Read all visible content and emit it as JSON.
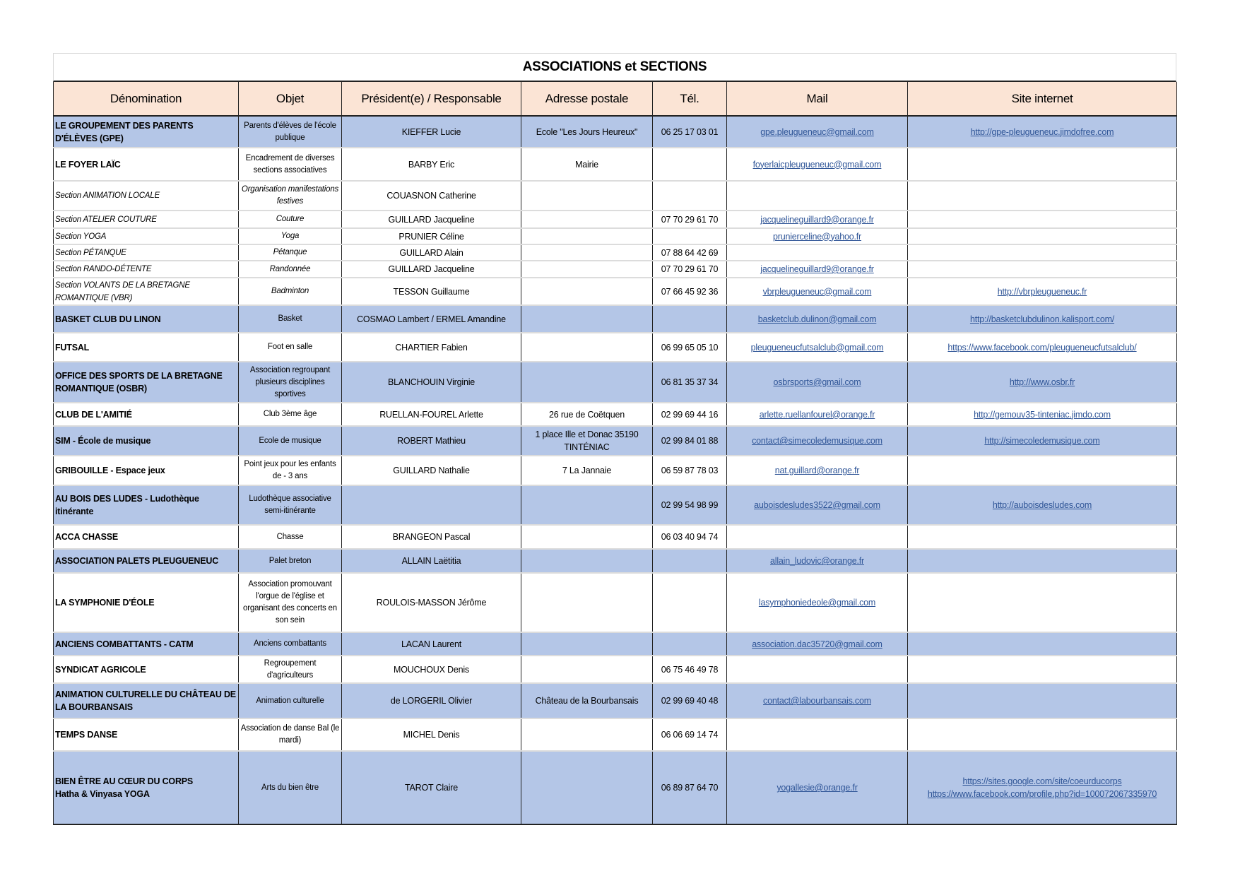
{
  "title": "ASSOCIATIONS et SECTIONS",
  "colors": {
    "header_bg": "#fbe4d5",
    "highlight_row": "#b4c6e7",
    "link": "#2f5597"
  },
  "columns": [
    "Dénomination",
    "Objet",
    "Président(e) / Responsable",
    "Adresse postale",
    "Tél.",
    "Mail",
    "Site internet"
  ],
  "rows": [
    {
      "name": "LE GROUPEMENT DES PARENTS D'ÉLÈVES (GPE)",
      "objet": "Parents d'élèves de l'école publique",
      "president": "KIEFFER Lucie",
      "adresse": "Ecole \"Les Jours Heureux\"",
      "tel": "06 25 17 03 01",
      "mail": "gpe.pleugueneuc@gmail.com",
      "site": "http://gpe-pleugueneuc.jimdofree.com"
    },
    {
      "name": "LE FOYER LAÏC",
      "objet": "Encadrement de diverses sections associatives",
      "president": "BARBY Eric",
      "adresse": "Mairie",
      "tel": "",
      "mail": "foyerlaicpleugueneuc@gmail.com",
      "site": ""
    },
    {
      "name": "Section ANIMATION LOCALE",
      "objet": "Organisation manifestations festives",
      "president": "COUASNON Catherine",
      "adresse": "",
      "tel": "",
      "mail": "",
      "site": ""
    },
    {
      "name": "Section ATELIER COUTURE",
      "objet": "Couture",
      "president": "GUILLARD Jacqueline",
      "adresse": "",
      "tel": "07 70 29 61 70",
      "mail": "jacquelineguillard9@orange.fr",
      "site": ""
    },
    {
      "name": "Section YOGA",
      "objet": "Yoga",
      "president": "PRUNIER Céline",
      "adresse": "",
      "tel": "",
      "mail": "prunierceline@yahoo.fr",
      "site": ""
    },
    {
      "name": "Section PÉTANQUE",
      "objet": "Pétanque",
      "president": "GUILLARD Alain",
      "adresse": "",
      "tel": "07 88 64 42 69",
      "mail": "",
      "site": ""
    },
    {
      "name": "Section RANDO-DÉTENTE",
      "objet": "Randonnée",
      "president": "GUILLARD Jacqueline",
      "adresse": "",
      "tel": "07 70 29 61 70",
      "mail": "jacquelineguillard9@orange.fr",
      "site": ""
    },
    {
      "name": "Section VOLANTS DE LA BRETAGNE ROMANTIQUE (VBR)",
      "objet": "Badminton",
      "president": "TESSON Guillaume",
      "adresse": "",
      "tel": "07 66 45 92 36",
      "mail": "vbrpleugueneuc@gmail.com",
      "site": "http://vbrpleugueneuc.fr"
    },
    {
      "name": "BASKET CLUB DU LINON",
      "objet": "Basket",
      "president": "COSMAO Lambert / ERMEL Amandine",
      "adresse": "",
      "tel": "",
      "mail": "basketclub.dulinon@gmail.com",
      "site": "http://basketclubdulinon.kalisport.com/"
    },
    {
      "name": "FUTSAL",
      "objet": "Foot en salle",
      "president": "CHARTIER Fabien",
      "adresse": "",
      "tel": "06 99 65 05 10",
      "mail": "pleugueneucfutsalclub@gmail.com",
      "site": "https://www.facebook.com/pleugueneucfutsalclub/"
    },
    {
      "name": "OFFICE DES SPORTS DE LA BRETAGNE ROMANTIQUE (OSBR)",
      "objet": "Association regroupant plusieurs disciplines sportives",
      "president": "BLANCHOUIN Virginie",
      "adresse": "",
      "tel": "06 81 35 37 34",
      "mail": "osbrsports@gmail.com",
      "site": "http://www.osbr.fr"
    },
    {
      "name": "CLUB DE L'AMITIÉ",
      "objet": "Club 3ème âge",
      "president": "RUELLAN-FOUREL Arlette",
      "adresse": "26 rue de Coëtquen",
      "tel": "02 99 69 44 16",
      "mail": "arlette.ruellanfourel@orange.fr",
      "site": "http://gemouv35-tinteniac.jimdo.com"
    },
    {
      "name": "SIM - École de musique",
      "objet": "Ecole de musique",
      "president": "ROBERT Mathieu",
      "adresse": "1 place Ille et Donac 35190 TINTÉNIAC",
      "tel": "02 99 84 01 88",
      "mail": "contact@simecoledemusique.com",
      "site": "http://simecoledemusique.com"
    },
    {
      "name": "GRIBOUILLE - Espace jeux",
      "objet": "Point jeux pour les enfants de - 3 ans",
      "president": "GUILLARD Nathalie",
      "adresse": "7 La Jannaie",
      "tel": "06 59 87 78 03",
      "mail": "nat.guillard@orange.fr",
      "site": ""
    },
    {
      "name": "AU BOIS DES LUDES - Ludothèque itinérante",
      "objet": "Ludothèque associative semi-itinérante",
      "president": "",
      "adresse": "",
      "tel": "02 99 54 98 99",
      "mail": "auboisdesludes3522@gmail.com",
      "site": "http://auboisdesludes.com"
    },
    {
      "name": "ACCA CHASSE",
      "objet": "Chasse",
      "president": "BRANGEON Pascal",
      "adresse": "",
      "tel": "06 03 40 94 74",
      "mail": "",
      "site": ""
    },
    {
      "name": "ASSOCIATION PALETS PLEUGUENEUC",
      "objet": "Palet breton",
      "president": "ALLAIN Laëtitia",
      "adresse": "",
      "tel": "",
      "mail": "allain_ludovic@orange.fr",
      "site": ""
    },
    {
      "name": "LA SYMPHONIE D'ÉOLE",
      "objet": "Association promouvant l'orgue de l'église et organisant des concerts en son sein",
      "president": "ROULOIS-MASSON Jérôme",
      "adresse": "",
      "tel": "",
      "mail": "lasymphoniedeole@gmail.com",
      "site": ""
    },
    {
      "name": "ANCIENS COMBATTANTS - CATM",
      "objet": "Anciens combattants",
      "president": "LACAN Laurent",
      "adresse": "",
      "tel": "",
      "mail": "association.dac35720@gmail.com",
      "site": ""
    },
    {
      "name": "SYNDICAT AGRICOLE",
      "objet": "Regroupement d'agriculteurs",
      "president": "MOUCHOUX Denis",
      "adresse": "",
      "tel": "06 75 46 49 78",
      "mail": "",
      "site": ""
    },
    {
      "name": "ANIMATION CULTURELLE DU CHÂTEAU DE LA BOURBANSAIS",
      "objet": "Animation culturelle",
      "president": "de LORGERIL Olivier",
      "adresse": "Château de la Bourbansais",
      "tel": "02 99 69 40 48",
      "mail": "contact@labourbansais.com",
      "site": ""
    },
    {
      "name": "TEMPS DANSE",
      "objet": "Association de danse Bal (le mardi)",
      "president": "MICHEL Denis",
      "adresse": "",
      "tel": "06 06 69 14 74",
      "mail": "",
      "site": ""
    },
    {
      "name": "BIEN ÊTRE AU CŒUR DU CORPS\nHatha & Vinyasa YOGA",
      "objet": "Arts du bien être",
      "president": "TAROT Claire",
      "adresse": "",
      "tel": "06 89 87 64 70",
      "mail": "yogallesie@orange.fr",
      "site": "https://sites.google.com/site/coeurducorps\nhttps://www.facebook.com/profile.php?id=100072067335970"
    }
  ]
}
